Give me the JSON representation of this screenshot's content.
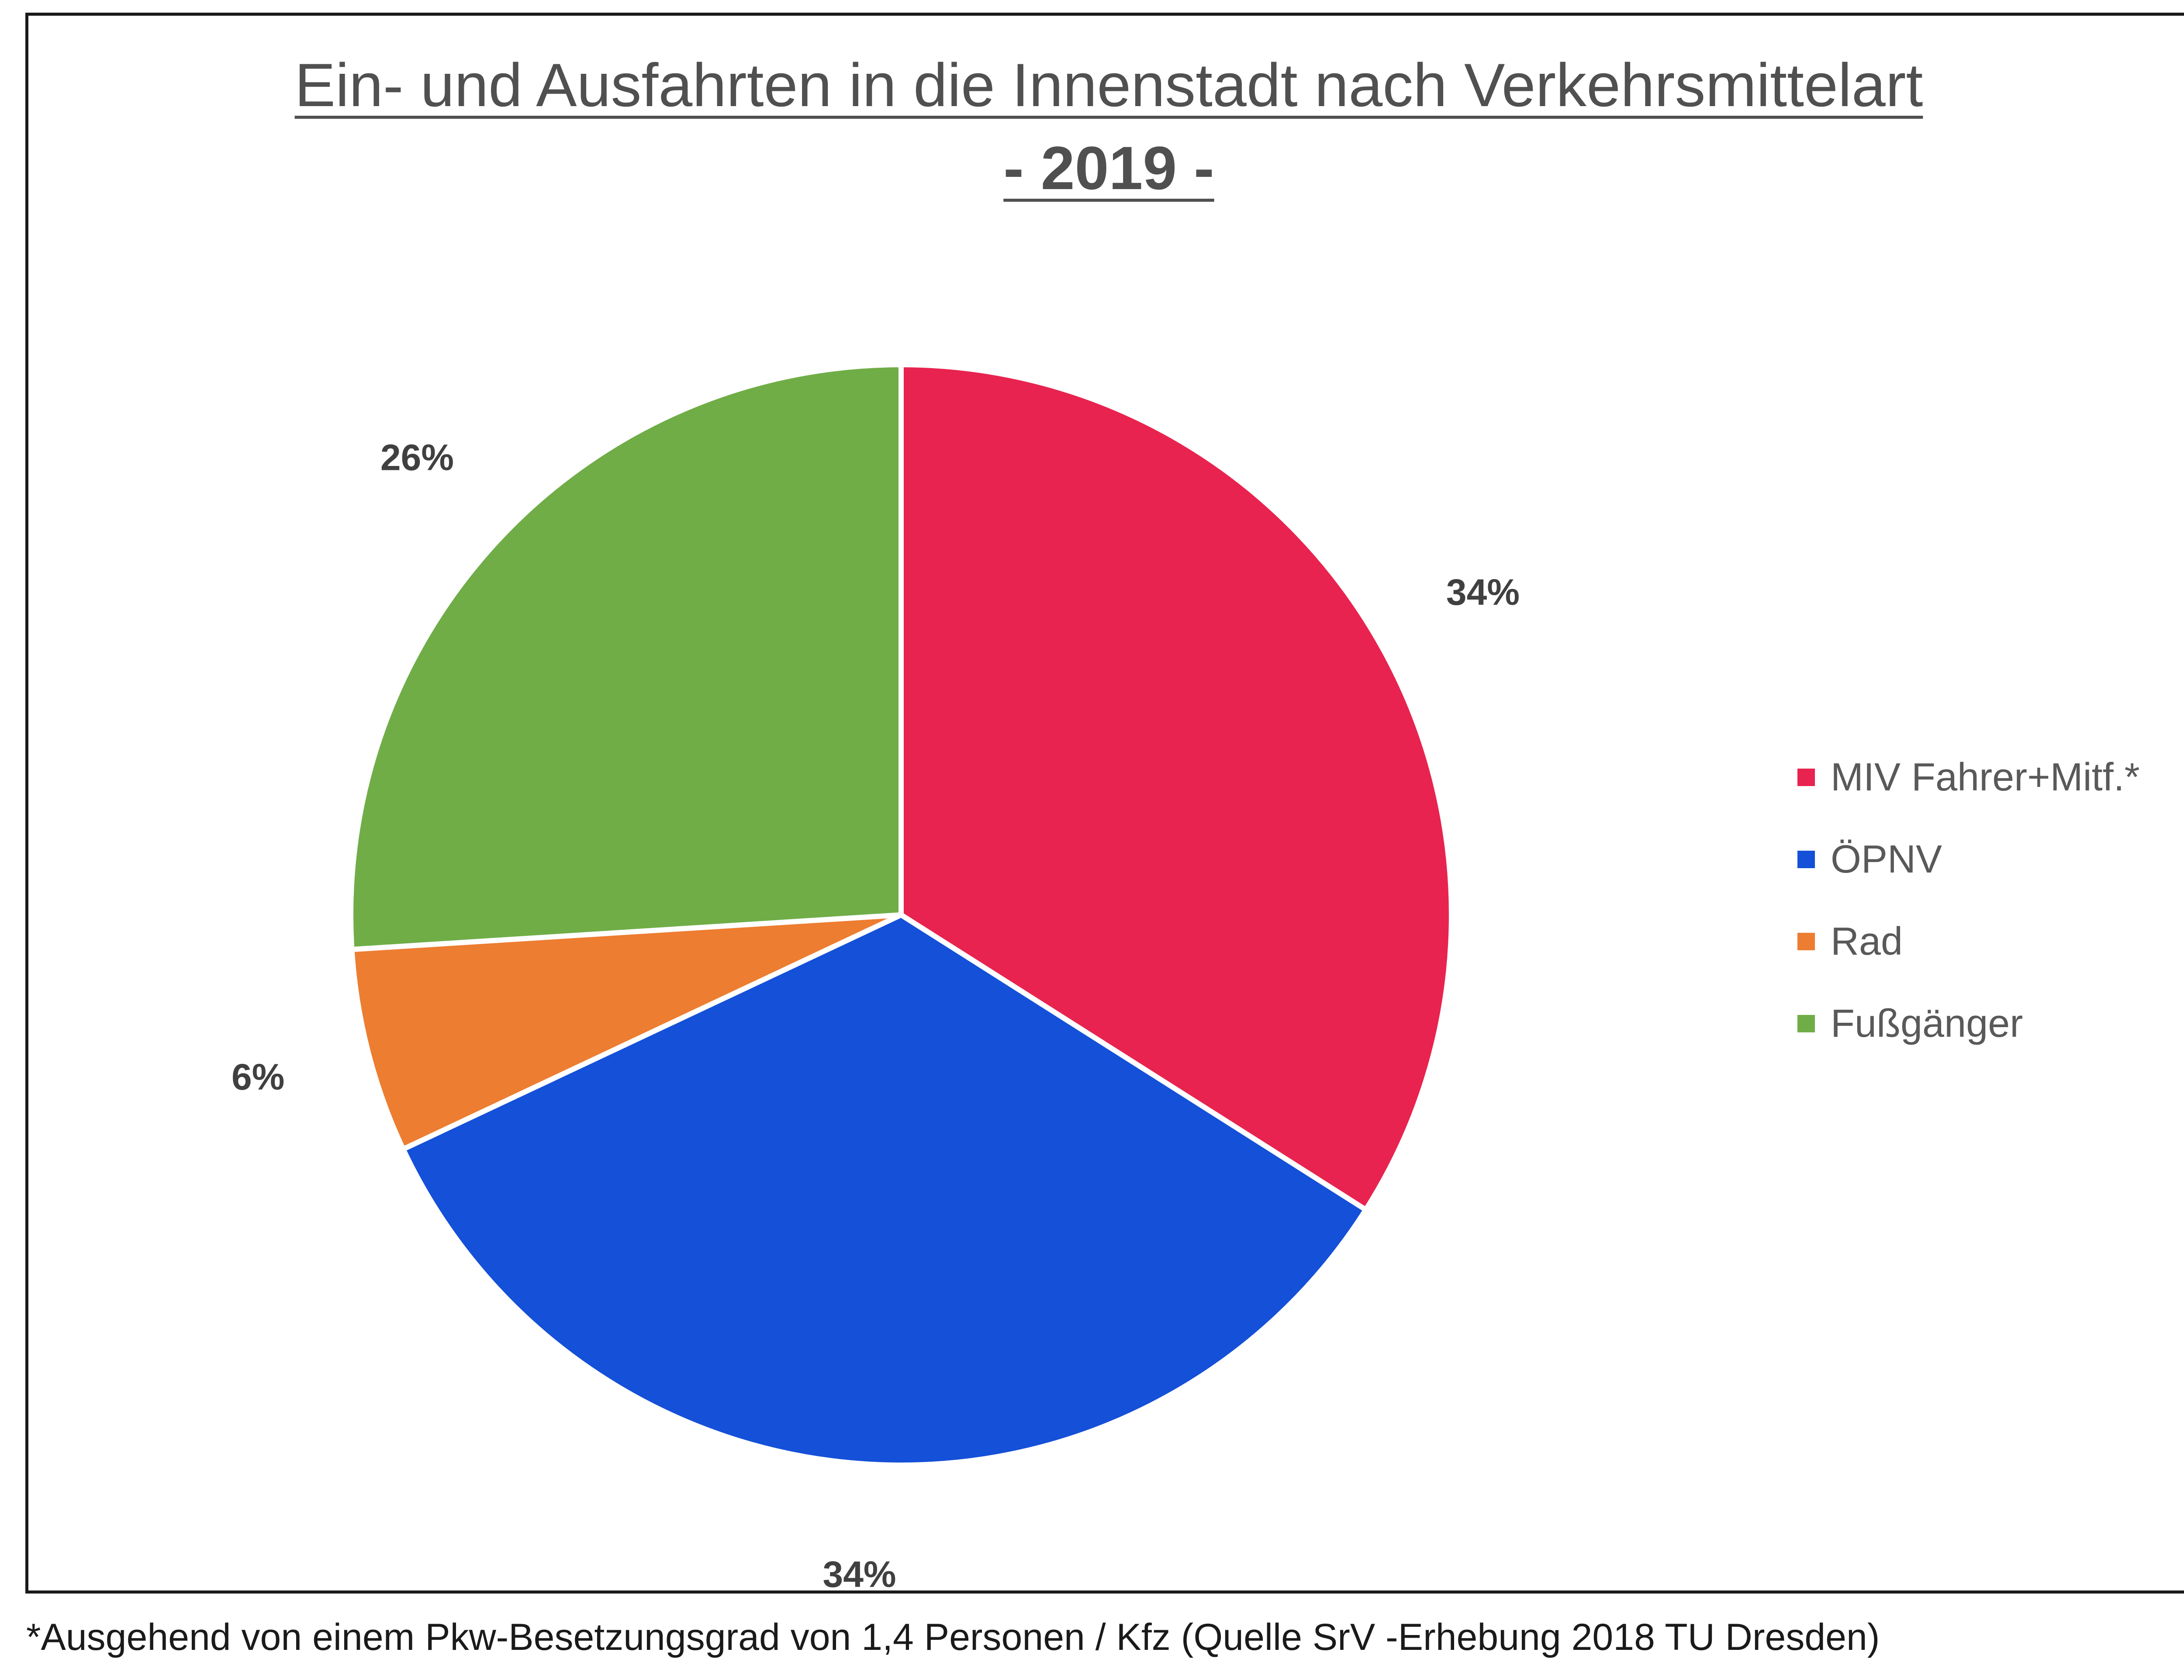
{
  "chart_data": {
    "type": "pie",
    "title": "Ein- und Ausfahrten in die Innenstadt nach Verkehrsmittelart",
    "subtitle": "- 2019 -",
    "categories": [
      "MIV Fahrer+Mitf.*",
      "ÖPNV",
      "Rad",
      "Fußgänger"
    ],
    "values": [
      34,
      34,
      6,
      26
    ],
    "data_labels": [
      "34%",
      "34%",
      "6%",
      "26%"
    ],
    "colors": [
      "#E8234F",
      "#1450D8",
      "#ED7D31",
      "#70AD47"
    ],
    "legend_position": "right",
    "start_angle": "12 o'clock",
    "direction": "clockwise"
  },
  "footnote": "*Ausgehend von einem Pkw-Besetzungsgrad von 1,4 Personen / Kfz (Quelle SrV -Erhebung 2018 TU Dresden)"
}
